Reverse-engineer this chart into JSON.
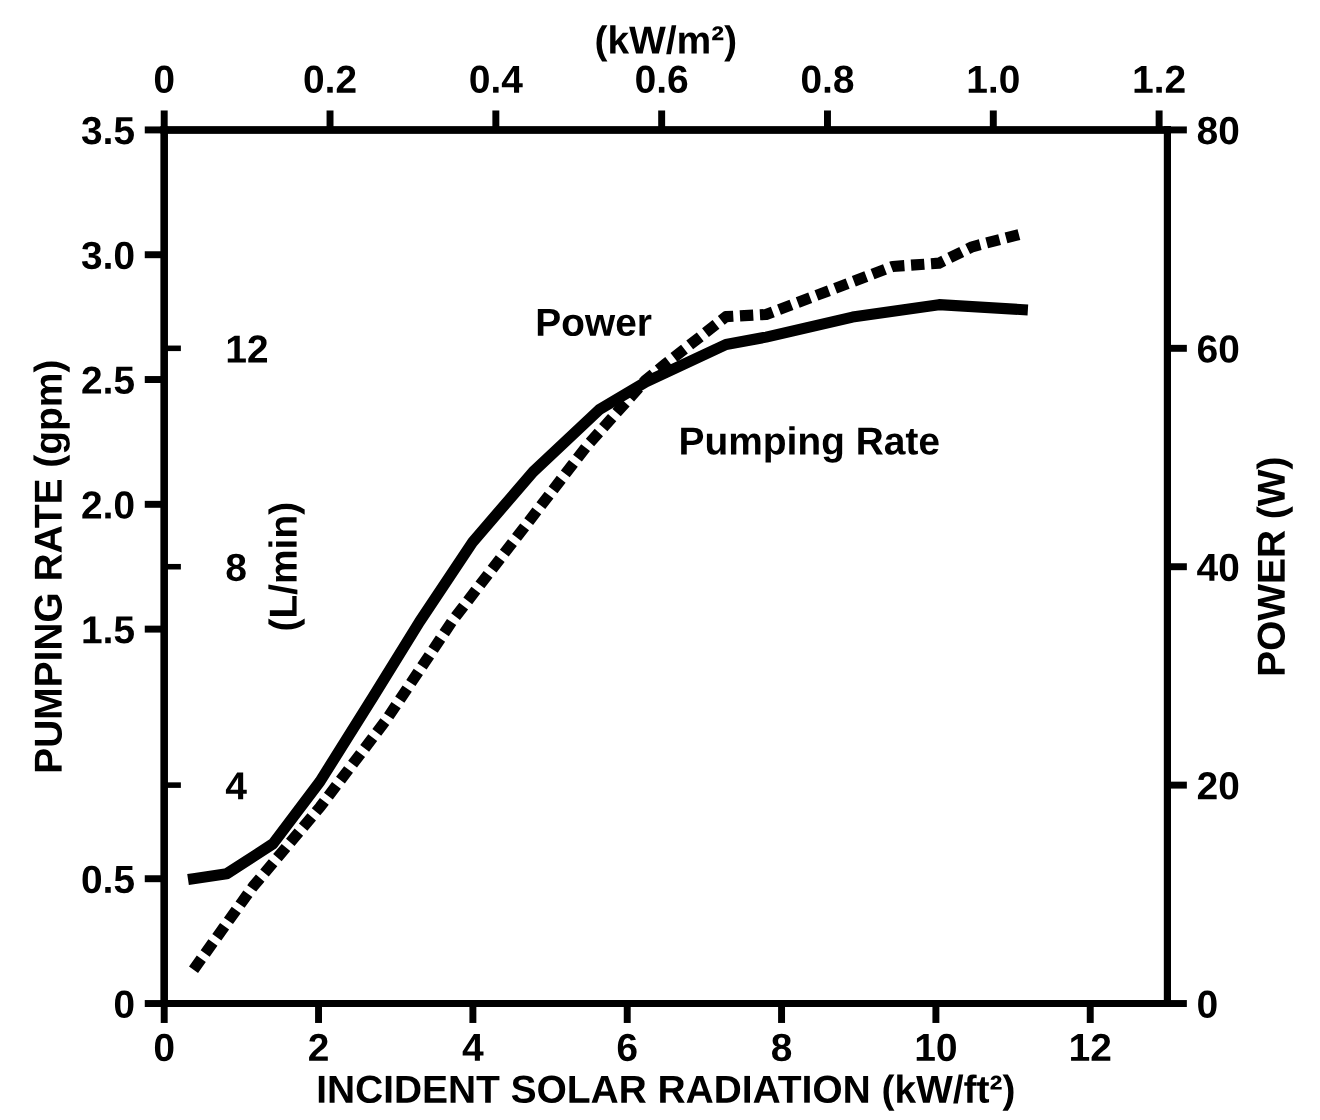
{
  "chart_data": {
    "type": "line",
    "xlabel": "INCIDENT SOLAR RADIATION (kW/ft²)",
    "ylabel": "PUMPING RATE (gpm)",
    "y2label": "POWER (W)",
    "y3label": "(L/min)",
    "x2label": "(kW/m²)",
    "xlim": [
      0,
      13
    ],
    "xticks": [
      0,
      2,
      4,
      6,
      8,
      10,
      12
    ],
    "x2lim": [
      0,
      1.21
    ],
    "x2ticks": [
      0,
      0.2,
      0.4,
      0.6,
      0.8,
      {
        "value": 1.0,
        "label": "1.0"
      },
      1.2
    ],
    "ylim": [
      0,
      3.5
    ],
    "yticks": [
      0,
      0.5,
      1.5,
      {
        "value": 2.0,
        "label": "2.0"
      },
      2.5,
      {
        "value": 3.0,
        "label": "3.0"
      },
      3.5
    ],
    "y2lim": [
      0,
      80
    ],
    "y2ticks": [
      0,
      20,
      40,
      60,
      80
    ],
    "y3lim": [
      0,
      16
    ],
    "y3ticks": [
      4,
      8,
      12
    ],
    "grid": false,
    "legend": false,
    "marker": "none",
    "series": [
      {
        "name": "Pumping Rate",
        "color": "#000000",
        "line_style": "solid",
        "x": [
          0.38,
          0.81,
          1.41,
          2.02,
          2.71,
          3.31,
          4.0,
          4.78,
          5.64,
          6.24,
          7.28,
          7.8,
          8.92,
          10.04,
          11.12
        ],
        "values": [
          0.5,
          0.52,
          0.64,
          0.89,
          1.23,
          1.53,
          1.85,
          2.13,
          2.38,
          2.49,
          2.64,
          2.67,
          2.75,
          2.8,
          2.78
        ]
      },
      {
        "name": "Power",
        "color": "#000000",
        "line_style": "dashed",
        "axis": "y2",
        "x": [
          0.38,
          1.15,
          2.02,
          2.88,
          3.74,
          4.61,
          5.47,
          6.24,
          6.5,
          7.28,
          7.8,
          8.66,
          9.44,
          10.04,
          10.47,
          11.12
        ],
        "values": [
          3.1,
          10.7,
          18.0,
          26.0,
          35.1,
          43.1,
          51.0,
          57.1,
          58.6,
          62.9,
          63.1,
          65.4,
          67.5,
          67.8,
          69.3,
          70.5
        ]
      }
    ]
  }
}
